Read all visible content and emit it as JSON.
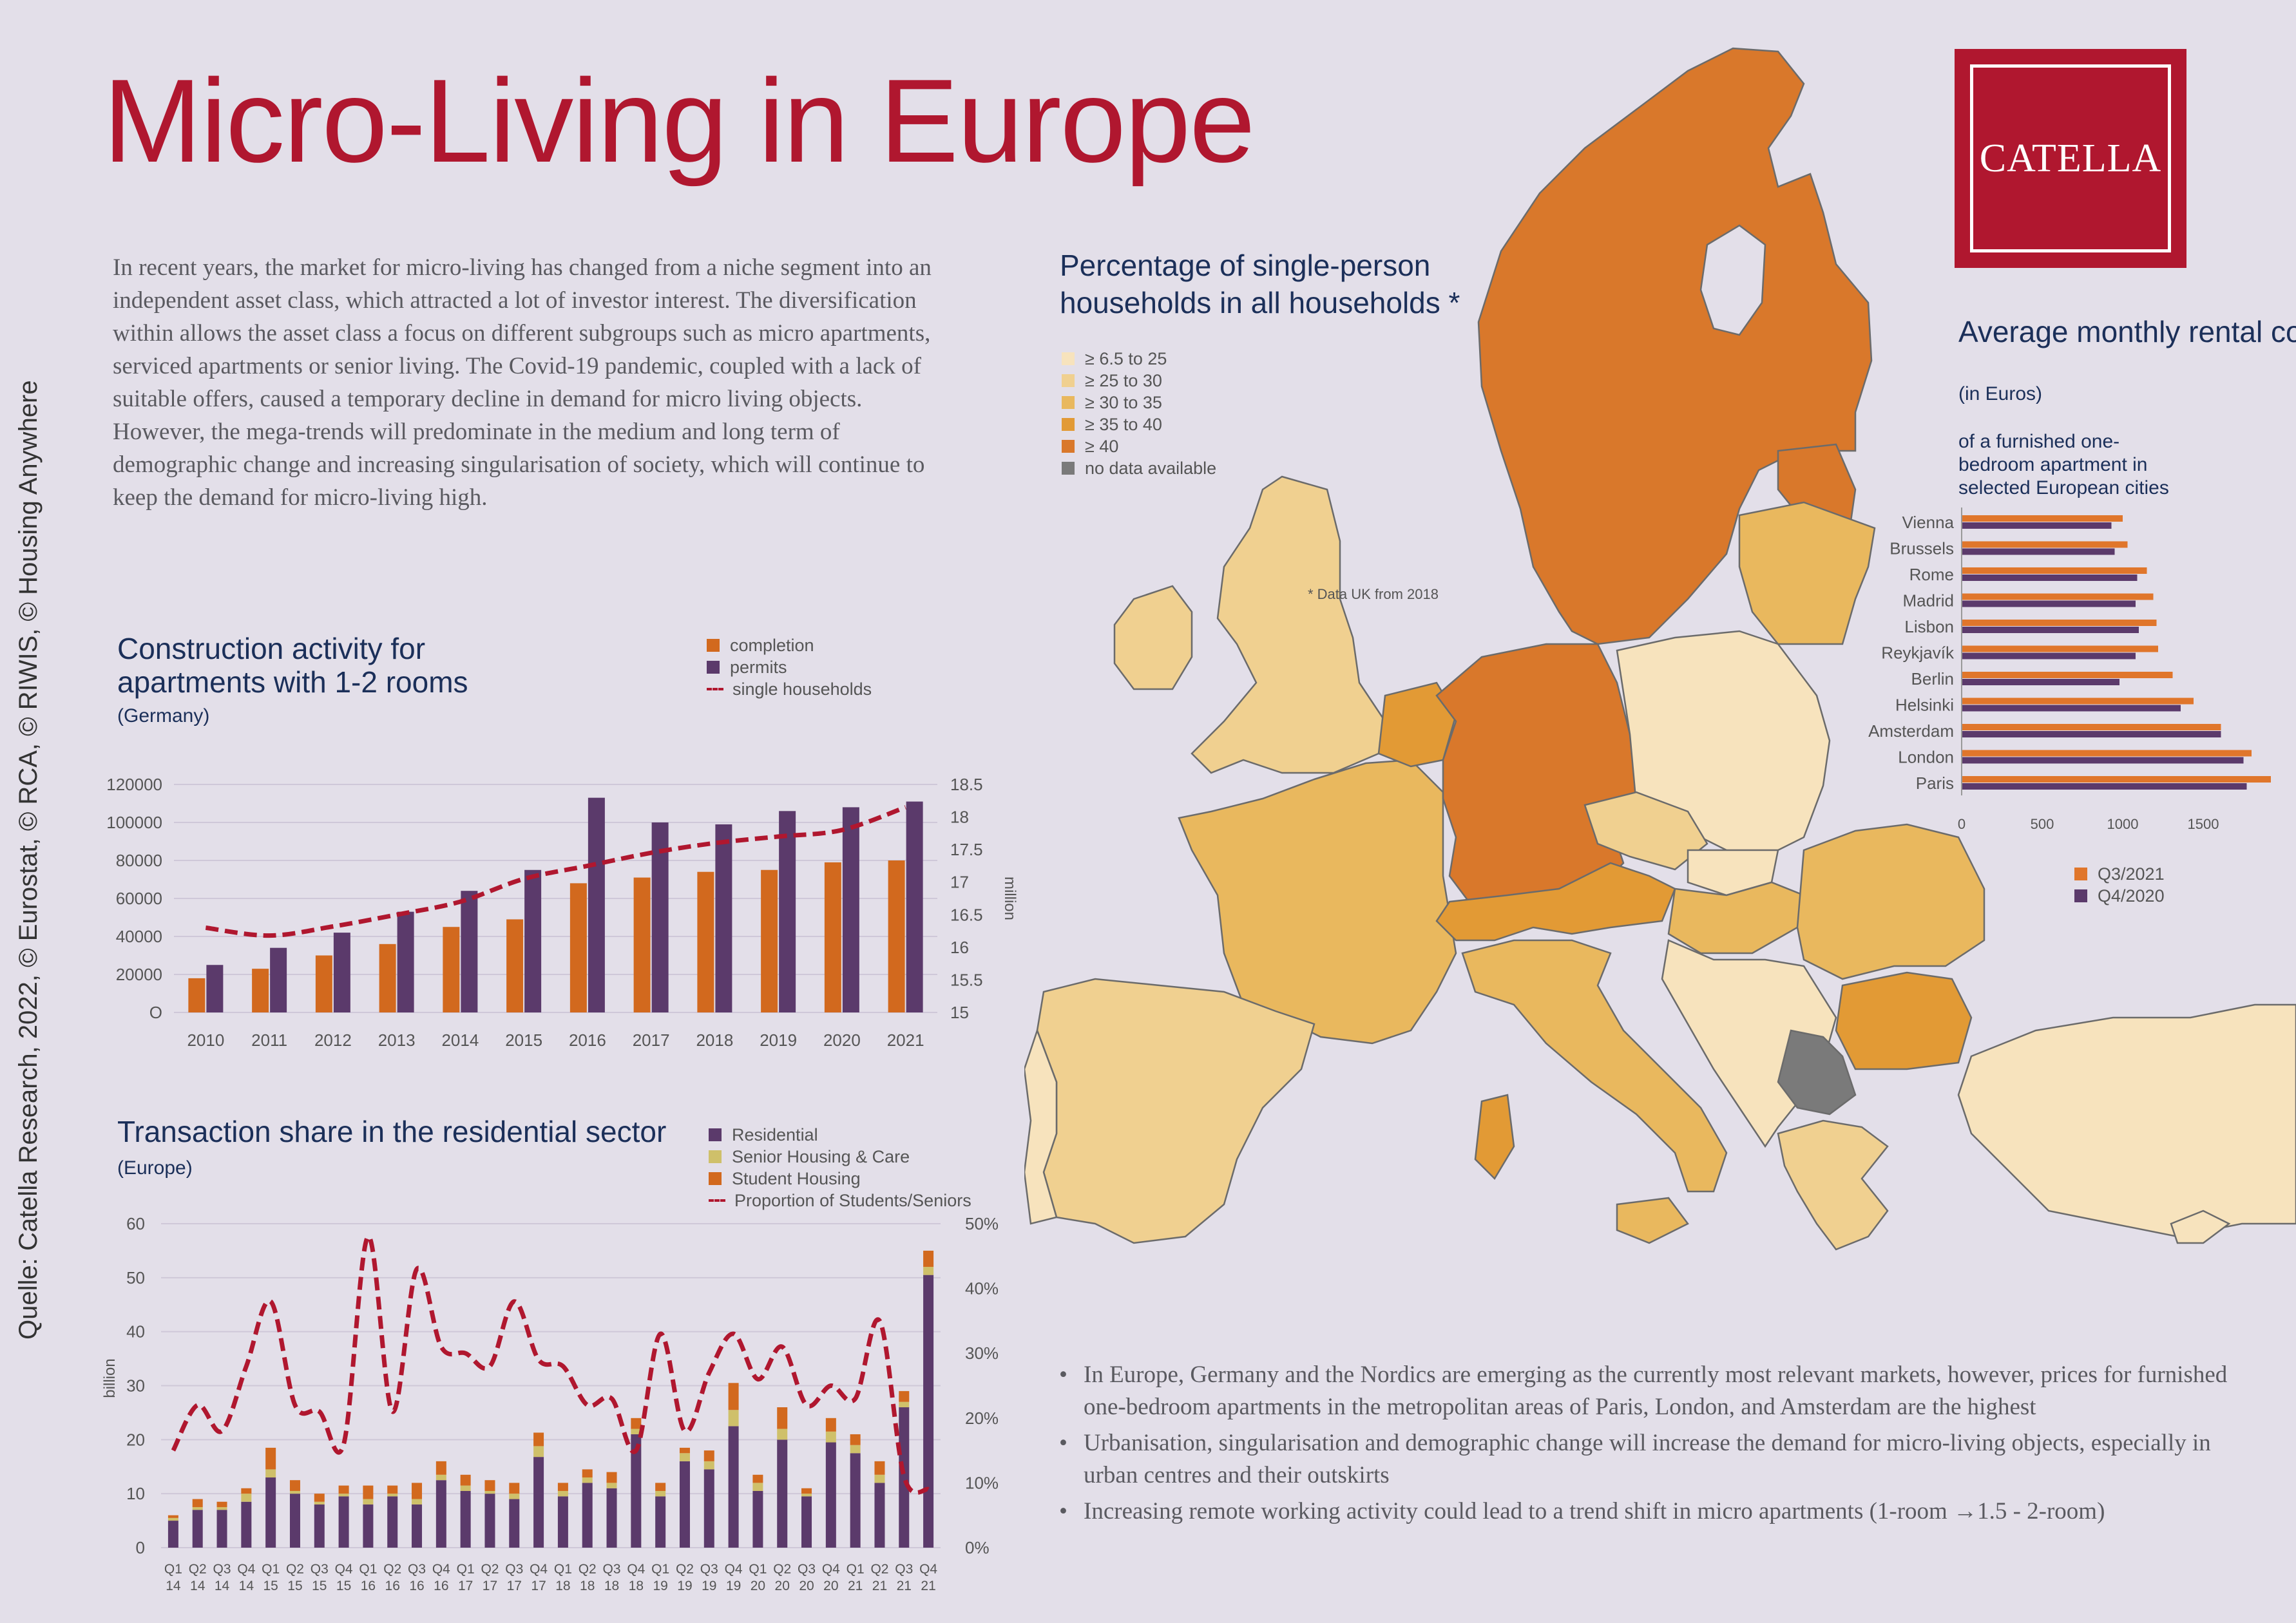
{
  "title": "Micro-Living in Europe",
  "intro": "In recent years, the market for micro-living has changed from a niche segment into an independent asset class, which attracted a lot of investor interest. The diversification within allows the asset class a focus on different subgroups such as micro apartments, serviced apartments or senior living. The Covid-19 pandemic, coupled with a lack of suitable offers, caused a temporary decline in demand for micro living objects. However, the mega-trends will predominate in the medium and long term of demographic change and increasing singularisation of society, which will continue to keep the demand for micro-living high.",
  "source": "Quelle: Catella Research, 2022, © Eurostat, © RCA, © RIWIS, © Housing Anywhere",
  "logo": "CATELLA",
  "colors": {
    "brand": "#b0172f",
    "navy": "#1b2f59",
    "completion": "#d2691e",
    "permits": "#5b3a6b",
    "residential": "#5b3a6b",
    "senior": "#cfc06a",
    "student": "#d2691e",
    "q3_2021": "#e0762b",
    "q4_2020": "#5b3a6b",
    "background": "#e3dfe9"
  },
  "map": {
    "title_line1": "Percentage of single-person",
    "title_line2": "households in all households *",
    "footnote": "* Data UK from 2018",
    "legend": [
      {
        "label": "≥ 6.5 to 25",
        "color": "#f7e3bd"
      },
      {
        "label": "≥ 25 to 30",
        "color": "#f0d090"
      },
      {
        "label": "≥ 30 to 35",
        "color": "#e9b85e"
      },
      {
        "label": "≥ 35 to 40",
        "color": "#e29a35"
      },
      {
        "label": "≥ 40",
        "color": "#d9782b"
      },
      {
        "label": "no data available",
        "color": "#7a7a7a"
      }
    ]
  },
  "bullets": [
    "In Europe, Germany and the Nordics are emerging as the currently most relevant markets, however, prices for furnished one-bedroom apartments in the metropolitan areas of Paris, London, and Amsterdam are the highest",
    "Urbanisation, singularisation and demographic change will increase the demand for micro-living objects, especially in urban centres and their outskirts",
    "Increasing remote working activity could lead to a trend shift in micro apartments (1-room →1.5 - 2-room)"
  ],
  "chart_data": [
    {
      "type": "bar",
      "title": "Construction activity for apartments with 1-2 rooms",
      "subtitle": "(Germany)",
      "categories": [
        "2010",
        "2011",
        "2012",
        "2013",
        "2014",
        "2015",
        "2016",
        "2017",
        "2018",
        "2019",
        "2020",
        "2021"
      ],
      "series": [
        {
          "name": "completion",
          "values": [
            18000,
            23000,
            30000,
            36000,
            45000,
            49000,
            68000,
            71000,
            74000,
            75000,
            79000,
            80000
          ]
        },
        {
          "name": "permits",
          "values": [
            25000,
            34000,
            42000,
            53000,
            64000,
            75000,
            113000,
            100000,
            99000,
            106000,
            108000,
            111000
          ]
        },
        {
          "name": "single households",
          "type": "line",
          "axis": "right",
          "values": [
            16.3,
            16.18,
            16.32,
            16.5,
            16.7,
            17.05,
            17.25,
            17.45,
            17.6,
            17.7,
            17.8,
            18.15
          ]
        }
      ],
      "y_ticks": [
        "120000",
        "100000",
        "80000",
        "60000",
        "40000",
        "20000",
        "O"
      ],
      "ylim": [
        0,
        120000
      ],
      "y2_ticks": [
        "18.5",
        "18",
        "17.5",
        "17",
        "16.5",
        "16",
        "15.5",
        "15"
      ],
      "y2lim": [
        15,
        18.5
      ],
      "y2label": "million",
      "legend_position": "top-right"
    },
    {
      "type": "bar",
      "title": "Transaction share in the residential sector",
      "subtitle": "(Europe)",
      "categories": [
        "Q1 14",
        "Q2 14",
        "Q3 14",
        "Q4 14",
        "Q1 15",
        "Q2 15",
        "Q3 15",
        "Q4 15",
        "Q1 16",
        "Q2 16",
        "Q3 16",
        "Q4 16",
        "Q1 17",
        "Q2 17",
        "Q3 17",
        "Q4 17",
        "Q1 18",
        "Q2 18",
        "Q3 18",
        "Q4 18",
        "Q1 19",
        "Q2 19",
        "Q3 19",
        "Q4 19",
        "Q1 20",
        "Q2 20",
        "Q3 20",
        "Q4 20",
        "Q1 21",
        "Q2 21",
        "Q3 21",
        "Q4 21"
      ],
      "stacked": true,
      "series": [
        {
          "name": "Residential",
          "values": [
            5,
            7,
            7,
            8.5,
            13,
            10,
            8,
            9.5,
            8,
            9.5,
            8,
            12.5,
            10.5,
            10,
            9,
            16.8,
            9.5,
            12,
            11,
            21,
            9.5,
            16,
            14.5,
            22.5,
            10.5,
            20,
            9.5,
            19.5,
            17.5,
            12,
            26,
            50.5
          ]
        },
        {
          "name": "Senior Housing & Care",
          "values": [
            0.5,
            0.5,
            0.5,
            1.5,
            1.5,
            0.5,
            0.5,
            0.5,
            1,
            0.5,
            1,
            1,
            1,
            0.5,
            1,
            2,
            1,
            1,
            1,
            1,
            1,
            1.5,
            1.5,
            3,
            1.5,
            2,
            0.5,
            2,
            1.5,
            1.5,
            1,
            1.5
          ]
        },
        {
          "name": "Student Housing",
          "values": [
            0.5,
            1.5,
            1,
            1,
            4,
            2,
            1.5,
            1.5,
            2.5,
            1.5,
            3,
            2.5,
            2,
            2,
            2,
            2.5,
            1.5,
            1.5,
            2,
            2,
            1.5,
            1,
            2,
            5,
            1.5,
            4,
            1,
            2.5,
            2,
            2.5,
            2,
            3
          ]
        },
        {
          "name": "Proportion of Students/Seniors",
          "type": "line",
          "axis": "right",
          "values": [
            15,
            22,
            18,
            28,
            38,
            22,
            21,
            16,
            48,
            21,
            43,
            31,
            30,
            28,
            38,
            29,
            28,
            22,
            23,
            15,
            33,
            18,
            27,
            33,
            26,
            31,
            22,
            25,
            23,
            35,
            11,
            9
          ]
        }
      ],
      "y_ticks": [
        "60",
        "50",
        "40",
        "30",
        "20",
        "10",
        "0"
      ],
      "ylim": [
        0,
        60
      ],
      "ylabel": "billion",
      "y2_ticks": [
        "50%",
        "40%",
        "30%",
        "20%",
        "10%",
        "0%"
      ],
      "y2lim": [
        0,
        50
      ],
      "legend_position": "top-right"
    },
    {
      "type": "bar",
      "orientation": "horizontal",
      "title": "Average monthly rental cost",
      "subtitle": "(in Euros)",
      "description": "of a furnished one-bedroom apartment in selected European cities",
      "categories": [
        "Vienna",
        "Brussels",
        "Rome",
        "Madrid",
        "Lisbon",
        "Reykjavík",
        "Berlin",
        "Helsinki",
        "Amsterdam",
        "London",
        "Paris"
      ],
      "series": [
        {
          "name": "Q3/2021",
          "values": [
            1000,
            1030,
            1150,
            1190,
            1210,
            1220,
            1310,
            1440,
            1610,
            1800,
            1920
          ]
        },
        {
          "name": "Q4/2020",
          "values": [
            930,
            950,
            1090,
            1080,
            1100,
            1080,
            980,
            1360,
            1610,
            1750,
            1770
          ]
        }
      ],
      "x_ticks": [
        "0",
        "500",
        "1000",
        "1500"
      ],
      "xlim": [
        0,
        2000
      ],
      "legend_position": "bottom-right"
    }
  ]
}
